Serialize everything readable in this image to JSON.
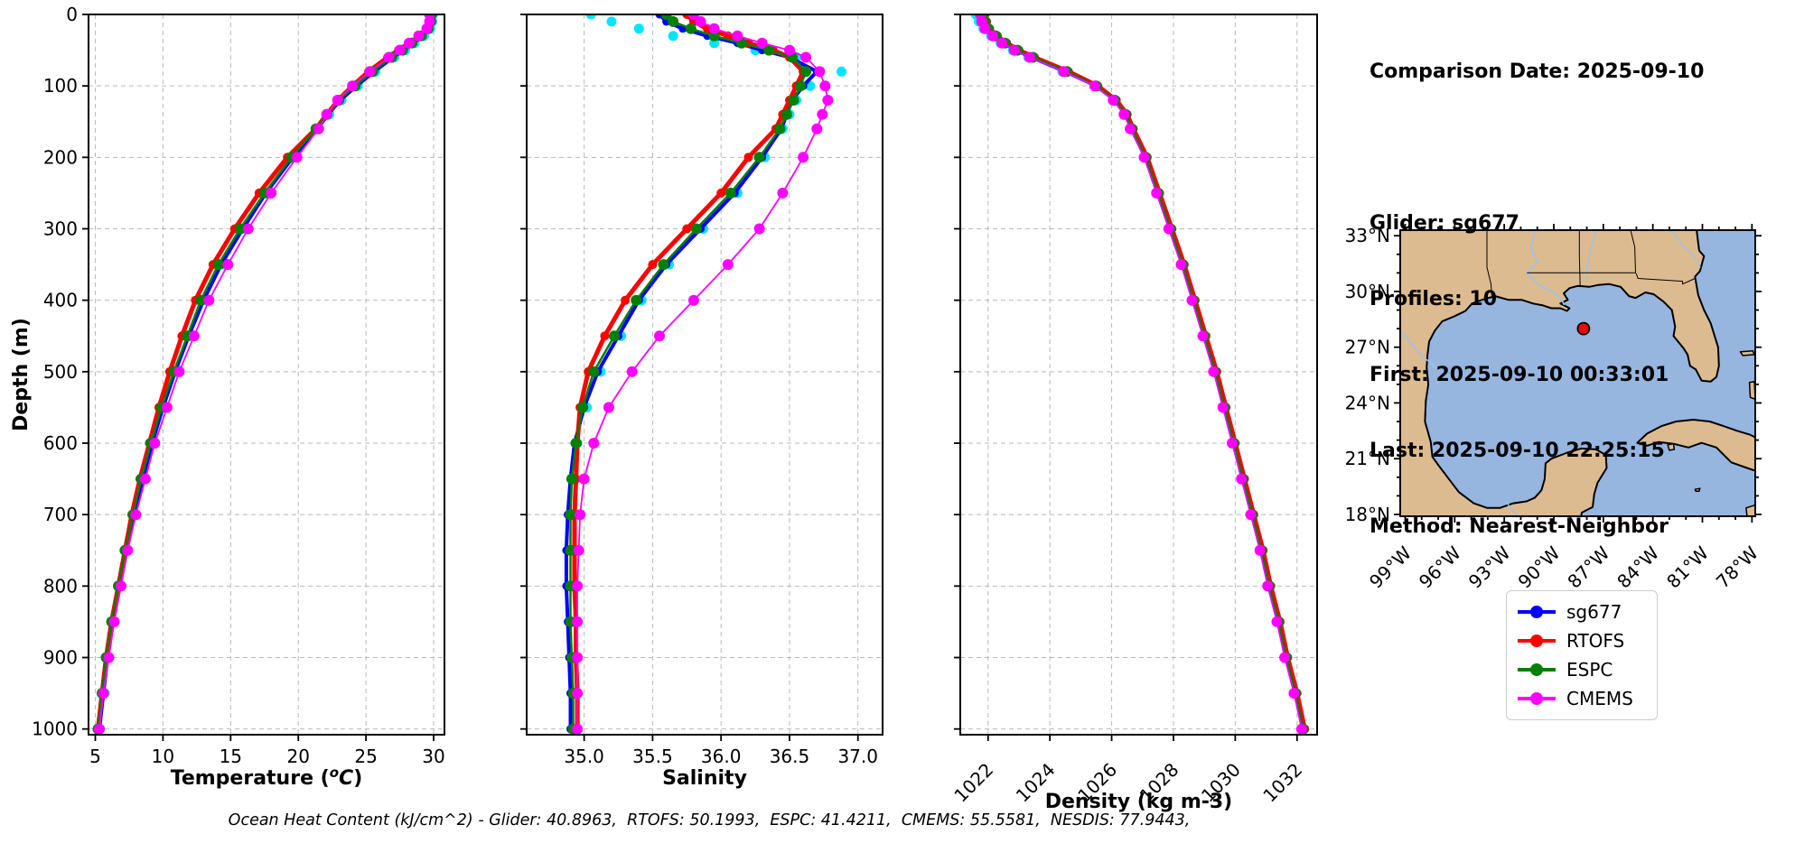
{
  "info_panel": {
    "comparison_date": "Comparison Date: 2025-09-10",
    "glider": "Glider: sg677",
    "profiles": "Profiles: 10",
    "first": "First: 2025-09-10 00:33:01",
    "last": "Last: 2025-09-10 22:25:15",
    "method": "Method: Nearest-Neighbor"
  },
  "footer": {
    "text": "Ocean Heat Content (kJ/cm^2) - Glider: 40.8963,  RTOFS: 50.1993,  ESPC: 41.4211,  CMEMS: 55.5581,  NESDIS: 77.9443,"
  },
  "legend": {
    "items": [
      {
        "label": "sg677",
        "color": "#0000FF"
      },
      {
        "label": "RTOFS",
        "color": "#FF0000"
      },
      {
        "label": "ESPC",
        "color": "#008000"
      },
      {
        "label": "CMEMS",
        "color": "#FF00FF"
      }
    ]
  },
  "map": {
    "land_color": "#DDBB90",
    "water_color": "#96B6E0",
    "river_color": "#9CC2E8",
    "lat_ticks": {
      "values": [
        33,
        30,
        27,
        24,
        21,
        18
      ],
      "labels": [
        "33°N",
        "30°N",
        "27°N",
        "24°N",
        "21°N",
        "18°N"
      ]
    },
    "lon_ticks": {
      "values": [
        -99,
        -96,
        -93,
        -90,
        -87,
        -84,
        -81,
        -78
      ],
      "labels": [
        "99°W",
        "96°W",
        "93°W",
        "90°W",
        "87°W",
        "84°W",
        "81°W",
        "78°W"
      ]
    },
    "marker": {
      "lon": -88.2,
      "lat": 28.0,
      "color": "#FF0000"
    }
  },
  "chart_data": [
    {
      "id": "temperature",
      "type": "line",
      "xlabel": "Temperature (°C)",
      "xlabel_rich": {
        "prefix": "Temperature (",
        "sup": "o",
        "italic": "C",
        "suffix": ")"
      },
      "ylabel": "Depth (m)",
      "xlim": [
        4.5,
        30.8
      ],
      "ylim": [
        0,
        1008
      ],
      "grid": true,
      "xtick_values": [
        5,
        10,
        15,
        20,
        25,
        30
      ],
      "xtick_labels": [
        "5",
        "10",
        "15",
        "20",
        "25",
        "30"
      ],
      "xtick_rotation": 0,
      "ytick_values": [
        0,
        100,
        200,
        300,
        400,
        500,
        600,
        700,
        800,
        900,
        1000
      ],
      "ytick_labels": [
        "0",
        "100",
        "200",
        "300",
        "400",
        "500",
        "600",
        "700",
        "800",
        "900",
        "1000"
      ],
      "show_ytick_labels": true,
      "depths": [
        0,
        10,
        20,
        30,
        40,
        50,
        60,
        80,
        100,
        120,
        140,
        160,
        200,
        250,
        300,
        350,
        400,
        450,
        500,
        550,
        600,
        650,
        700,
        750,
        800,
        850,
        900,
        950,
        1000
      ],
      "series": [
        {
          "name": "NESDIS",
          "color": "#00E5FF",
          "lw": 0,
          "marker_r": 5.5,
          "values": [
            29.95,
            29.9,
            29.75,
            29.3,
            28.6,
            27.9,
            27.1,
            25.7,
            24.4,
            23.2,
            22.3,
            21.5,
            19.7,
            17.7,
            16.0,
            14.4,
            13.1,
            12.0,
            11.0,
            10.1,
            9.3,
            8.6,
            8.0,
            7.4,
            6.9,
            6.4,
            6.0,
            5.7,
            5.35
          ]
        },
        {
          "name": "sg677",
          "color": "#0000FF",
          "lw": 4,
          "marker_r": 4.5,
          "values": [
            29.9,
            29.9,
            29.7,
            29.2,
            28.5,
            27.8,
            27.0,
            25.6,
            24.3,
            23.1,
            22.2,
            21.4,
            19.6,
            17.6,
            15.9,
            14.3,
            13.0,
            11.9,
            10.9,
            10.0,
            9.2,
            8.5,
            7.9,
            7.3,
            6.8,
            6.3,
            5.9,
            5.6,
            5.3
          ]
        },
        {
          "name": "RTOFS",
          "color": "#FF0000",
          "lw": 5,
          "marker_r": 5,
          "values": [
            29.8,
            29.8,
            29.6,
            29.0,
            28.2,
            27.4,
            26.6,
            25.2,
            24.0,
            22.95,
            22.1,
            21.3,
            19.2,
            17.1,
            15.3,
            13.7,
            12.4,
            11.4,
            10.5,
            9.7,
            9.0,
            8.3,
            7.7,
            7.2,
            6.7,
            6.2,
            5.8,
            5.5,
            5.2
          ]
        },
        {
          "name": "ESPC",
          "color": "#008000",
          "lw": 2.5,
          "marker_r": 6,
          "values": [
            29.85,
            29.8,
            29.6,
            29.1,
            28.4,
            27.7,
            26.9,
            25.5,
            24.2,
            23.0,
            22.1,
            21.3,
            19.5,
            17.5,
            15.7,
            14.1,
            12.8,
            11.8,
            10.8,
            9.9,
            9.1,
            8.4,
            7.8,
            7.2,
            6.7,
            6.2,
            5.8,
            5.5,
            5.2
          ]
        },
        {
          "name": "CMEMS",
          "color": "#FF00FF",
          "lw": 1.8,
          "marker_r": 6,
          "values": [
            29.7,
            29.7,
            29.5,
            28.9,
            28.2,
            27.5,
            26.7,
            25.3,
            24.0,
            22.9,
            22.1,
            21.5,
            19.9,
            18.0,
            16.3,
            14.8,
            13.4,
            12.3,
            11.2,
            10.3,
            9.4,
            8.7,
            8.0,
            7.4,
            6.9,
            6.4,
            6.0,
            5.6,
            5.3
          ]
        }
      ]
    },
    {
      "id": "salinity",
      "type": "line",
      "xlabel": "Salinity",
      "xlim": [
        34.58,
        37.18
      ],
      "ylim": [
        0,
        1008
      ],
      "grid": true,
      "xtick_values": [
        35.0,
        35.5,
        36.0,
        36.5,
        37.0
      ],
      "xtick_labels": [
        "35.0",
        "35.5",
        "36.0",
        "36.5",
        "37.0"
      ],
      "xtick_rotation": 0,
      "ytick_values": [
        0,
        100,
        200,
        300,
        400,
        500,
        600,
        700,
        800,
        900,
        1000
      ],
      "ytick_labels": [
        "0",
        "100",
        "200",
        "300",
        "400",
        "500",
        "600",
        "700",
        "800",
        "900",
        "1000"
      ],
      "show_ytick_labels": false,
      "depths": [
        0,
        10,
        20,
        30,
        40,
        50,
        60,
        80,
        100,
        120,
        140,
        160,
        200,
        250,
        300,
        350,
        400,
        450,
        500,
        550,
        600,
        650,
        700,
        750,
        800,
        850,
        900,
        950,
        1000
      ],
      "series": [
        {
          "name": "NESDIS",
          "color": "#00E5FF",
          "lw": 0,
          "marker_r": 5.5,
          "values": [
            35.05,
            35.2,
            35.4,
            35.65,
            35.95,
            36.25,
            36.55,
            36.88,
            36.65,
            36.55,
            36.5,
            36.45,
            36.32,
            36.12,
            35.87,
            35.62,
            35.42,
            35.27,
            35.12,
            35.02,
            34.95,
            34.92,
            34.9,
            34.89,
            34.89,
            34.9,
            34.9,
            34.91,
            34.91
          ]
        },
        {
          "name": "sg677",
          "color": "#0000FF",
          "lw": 4,
          "marker_r": 4.5,
          "values": [
            35.55,
            35.6,
            35.72,
            35.9,
            36.12,
            36.3,
            36.5,
            36.7,
            36.6,
            36.52,
            36.48,
            36.44,
            36.3,
            36.1,
            35.85,
            35.6,
            35.4,
            35.25,
            35.1,
            35.0,
            34.93,
            34.9,
            34.88,
            34.87,
            34.87,
            34.88,
            34.89,
            34.9,
            34.9
          ]
        },
        {
          "name": "RTOFS",
          "color": "#FF0000",
          "lw": 5,
          "marker_r": 5,
          "values": [
            35.75,
            35.8,
            35.9,
            36.05,
            36.2,
            36.38,
            36.5,
            36.6,
            36.55,
            36.5,
            36.45,
            36.4,
            36.2,
            36.0,
            35.75,
            35.5,
            35.3,
            35.15,
            35.03,
            34.97,
            34.95,
            34.94,
            34.93,
            34.93,
            34.93,
            34.94,
            34.94,
            34.95,
            34.95
          ]
        },
        {
          "name": "ESPC",
          "color": "#008000",
          "lw": 2.5,
          "marker_r": 6,
          "values": [
            35.6,
            35.65,
            35.78,
            35.95,
            36.15,
            36.35,
            36.52,
            36.62,
            36.58,
            36.53,
            36.48,
            36.43,
            36.28,
            36.07,
            35.82,
            35.58,
            35.38,
            35.22,
            35.07,
            34.99,
            34.94,
            34.91,
            34.9,
            34.9,
            34.9,
            34.9,
            34.91,
            34.92,
            34.92
          ]
        },
        {
          "name": "CMEMS",
          "color": "#FF00FF",
          "lw": 1.8,
          "marker_r": 6,
          "values": [
            35.8,
            35.85,
            35.95,
            36.12,
            36.3,
            36.5,
            36.62,
            36.72,
            36.76,
            36.78,
            36.74,
            36.7,
            36.6,
            36.45,
            36.28,
            36.05,
            35.8,
            35.55,
            35.35,
            35.18,
            35.07,
            35.0,
            34.97,
            34.96,
            34.95,
            34.95,
            34.95,
            34.95,
            34.95
          ]
        }
      ]
    },
    {
      "id": "density",
      "type": "line",
      "xlabel": "Density (kg m-3)",
      "xlim": [
        1021.1,
        1032.65
      ],
      "ylim": [
        0,
        1008
      ],
      "grid": true,
      "xtick_values": [
        1022,
        1024,
        1026,
        1028,
        1030,
        1032
      ],
      "xtick_labels": [
        "1022",
        "1024",
        "1026",
        "1028",
        "1030",
        "1032"
      ],
      "xtick_rotation": 45,
      "ytick_values": [
        0,
        100,
        200,
        300,
        400,
        500,
        600,
        700,
        800,
        900,
        1000
      ],
      "ytick_labels": [
        "0",
        "100",
        "200",
        "300",
        "400",
        "500",
        "600",
        "700",
        "800",
        "900",
        "1000"
      ],
      "show_ytick_labels": false,
      "depths": [
        0,
        10,
        20,
        30,
        40,
        50,
        60,
        80,
        100,
        120,
        140,
        160,
        200,
        250,
        300,
        350,
        400,
        450,
        500,
        550,
        600,
        650,
        700,
        750,
        800,
        850,
        900,
        950,
        1000
      ],
      "series": [
        {
          "name": "NESDIS",
          "color": "#00E5FF",
          "lw": 0,
          "marker_r": 5.5,
          "values": [
            1021.6,
            1021.7,
            1021.85,
            1022.1,
            1022.4,
            1022.8,
            1023.3,
            1024.4,
            1025.45,
            1026.05,
            1026.4,
            1026.62,
            1027.05,
            1027.45,
            1027.85,
            1028.25,
            1028.6,
            1028.95,
            1029.3,
            1029.6,
            1029.9,
            1030.2,
            1030.5,
            1030.8,
            1031.05,
            1031.35,
            1031.6,
            1031.9,
            1032.15
          ]
        },
        {
          "name": "sg677",
          "color": "#0000FF",
          "lw": 4,
          "marker_r": 4.5,
          "values": [
            1021.8,
            1021.85,
            1021.95,
            1022.2,
            1022.5,
            1022.9,
            1023.4,
            1024.5,
            1025.5,
            1026.1,
            1026.45,
            1026.65,
            1027.1,
            1027.5,
            1027.9,
            1028.3,
            1028.65,
            1029.0,
            1029.35,
            1029.65,
            1029.95,
            1030.25,
            1030.55,
            1030.85,
            1031.1,
            1031.4,
            1031.65,
            1031.95,
            1032.2
          ]
        },
        {
          "name": "RTOFS",
          "color": "#FF0000",
          "lw": 5,
          "marker_r": 5,
          "values": [
            1021.9,
            1021.95,
            1022.05,
            1022.3,
            1022.6,
            1023.0,
            1023.5,
            1024.6,
            1025.55,
            1026.15,
            1026.5,
            1026.7,
            1027.15,
            1027.55,
            1027.95,
            1028.35,
            1028.7,
            1029.05,
            1029.4,
            1029.7,
            1030.0,
            1030.3,
            1030.6,
            1030.9,
            1031.15,
            1031.45,
            1031.7,
            1032.0,
            1032.25
          ]
        },
        {
          "name": "ESPC",
          "color": "#008000",
          "lw": 2.5,
          "marker_r": 6,
          "values": [
            1021.85,
            1021.9,
            1022.0,
            1022.25,
            1022.55,
            1022.95,
            1023.45,
            1024.55,
            1025.5,
            1026.1,
            1026.45,
            1026.65,
            1027.1,
            1027.5,
            1027.9,
            1028.3,
            1028.65,
            1029.0,
            1029.35,
            1029.65,
            1029.95,
            1030.25,
            1030.55,
            1030.85,
            1031.1,
            1031.4,
            1031.65,
            1031.95,
            1032.2
          ]
        },
        {
          "name": "CMEMS",
          "color": "#FF00FF",
          "lw": 1.8,
          "marker_r": 6,
          "values": [
            1021.75,
            1021.8,
            1021.9,
            1022.15,
            1022.45,
            1022.85,
            1023.35,
            1024.45,
            1025.45,
            1026.05,
            1026.4,
            1026.6,
            1027.05,
            1027.45,
            1027.85,
            1028.25,
            1028.6,
            1028.95,
            1029.3,
            1029.6,
            1029.9,
            1030.2,
            1030.5,
            1030.8,
            1031.05,
            1031.35,
            1031.6,
            1031.9,
            1032.15
          ]
        }
      ]
    }
  ]
}
